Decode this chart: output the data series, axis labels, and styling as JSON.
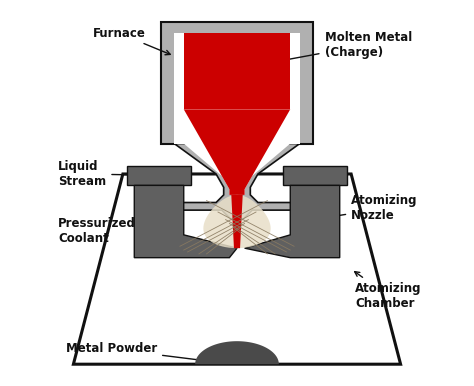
{
  "bg_color": "#ffffff",
  "furnace_gray": "#b0b0b0",
  "dark_gray": "#606060",
  "red": "#cc0000",
  "black": "#111111",
  "powder_color": "#e8dfc8",
  "metal_powder_color": "#4a4a4a",
  "spray_line_color": "#8a7a60",
  "labels": {
    "furnace": "Furnace",
    "molten": "Molten Metal\n(Charge)",
    "liquid_stream": "Liquid\nStream",
    "pressurized": "Pressurized\nCoolant",
    "atomizing_nozzle": "Atomizing\nNozzle",
    "atomizing_chamber": "Atomizing\nChamber",
    "metal_powder": "Metal Powder"
  },
  "fontsize": 8.5
}
